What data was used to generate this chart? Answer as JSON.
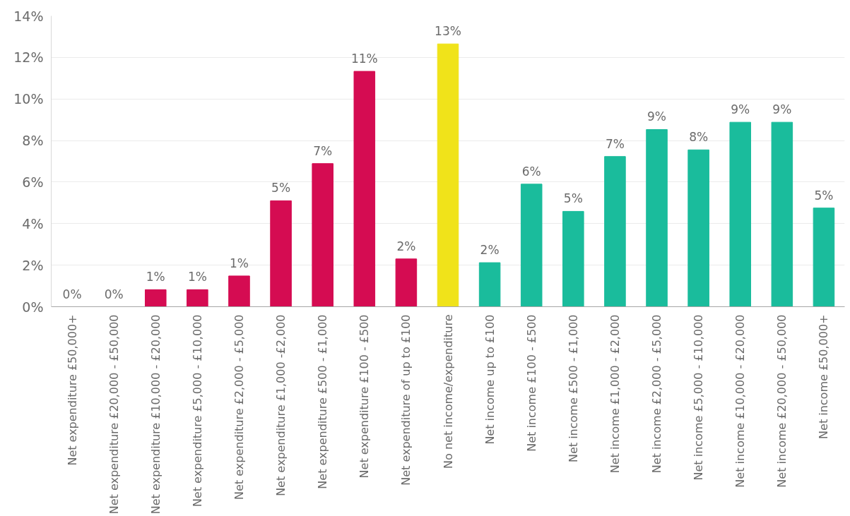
{
  "chart_data": {
    "type": "bar",
    "categories": [
      "Net expenditure £50,000+",
      "Net expenditure £20,000 - £50,000",
      "Net expenditure £10,000 - £20,000",
      "Net expenditure £5,000 - £10,000",
      "Net expenditure £2,000 - £5,000",
      "Net expenditure £1,000 -£2,000",
      "Net expenditure £500 - £1,000",
      "Net expenditure £100 - £500",
      "Net expenditure of up to £100",
      "No net income/expenditure",
      "Net income up to £100",
      "Net income £100 - £500",
      "Net income £500 - £1,000",
      "Net income £1,000 - £2,000",
      "Net income £2,000 - £5,000",
      "Net income £5,000 - £10,000",
      "Net income £10,000 - £20,000",
      "Net income £20,000 - £50,000",
      "Net income £50,000+"
    ],
    "values": [
      0,
      0,
      0.82,
      0.82,
      1.48,
      5.1,
      6.89,
      11.33,
      2.3,
      12.65,
      2.12,
      5.9,
      4.59,
      7.23,
      8.53,
      7.55,
      8.88,
      8.88,
      4.75
    ],
    "value_labels": [
      "0%",
      "0%",
      "1%",
      "1%",
      "1%",
      "5%",
      "7%",
      "11%",
      "2%",
      "13%",
      "2%",
      "6%",
      "5%",
      "7%",
      "9%",
      "8%",
      "9%",
      "9%",
      "5%"
    ],
    "colors": [
      "#d50c52",
      "#d50c52",
      "#d50c52",
      "#d50c52",
      "#d50c52",
      "#d50c52",
      "#d50c52",
      "#d50c52",
      "#d50c52",
      "#f0e31a",
      "#1abc9c",
      "#1abc9c",
      "#1abc9c",
      "#1abc9c",
      "#1abc9c",
      "#1abc9c",
      "#1abc9c",
      "#1abc9c",
      "#1abc9c"
    ],
    "ylim": [
      0,
      14
    ],
    "yticks": [
      {
        "value": 0,
        "label": "0%"
      },
      {
        "value": 2,
        "label": "2%"
      },
      {
        "value": 4,
        "label": "4%"
      },
      {
        "value": 6,
        "label": "6%"
      },
      {
        "value": 8,
        "label": "8%"
      },
      {
        "value": 10,
        "label": "10%"
      },
      {
        "value": 12,
        "label": "12%"
      },
      {
        "value": 14,
        "label": "14%"
      }
    ],
    "grid": "y"
  }
}
